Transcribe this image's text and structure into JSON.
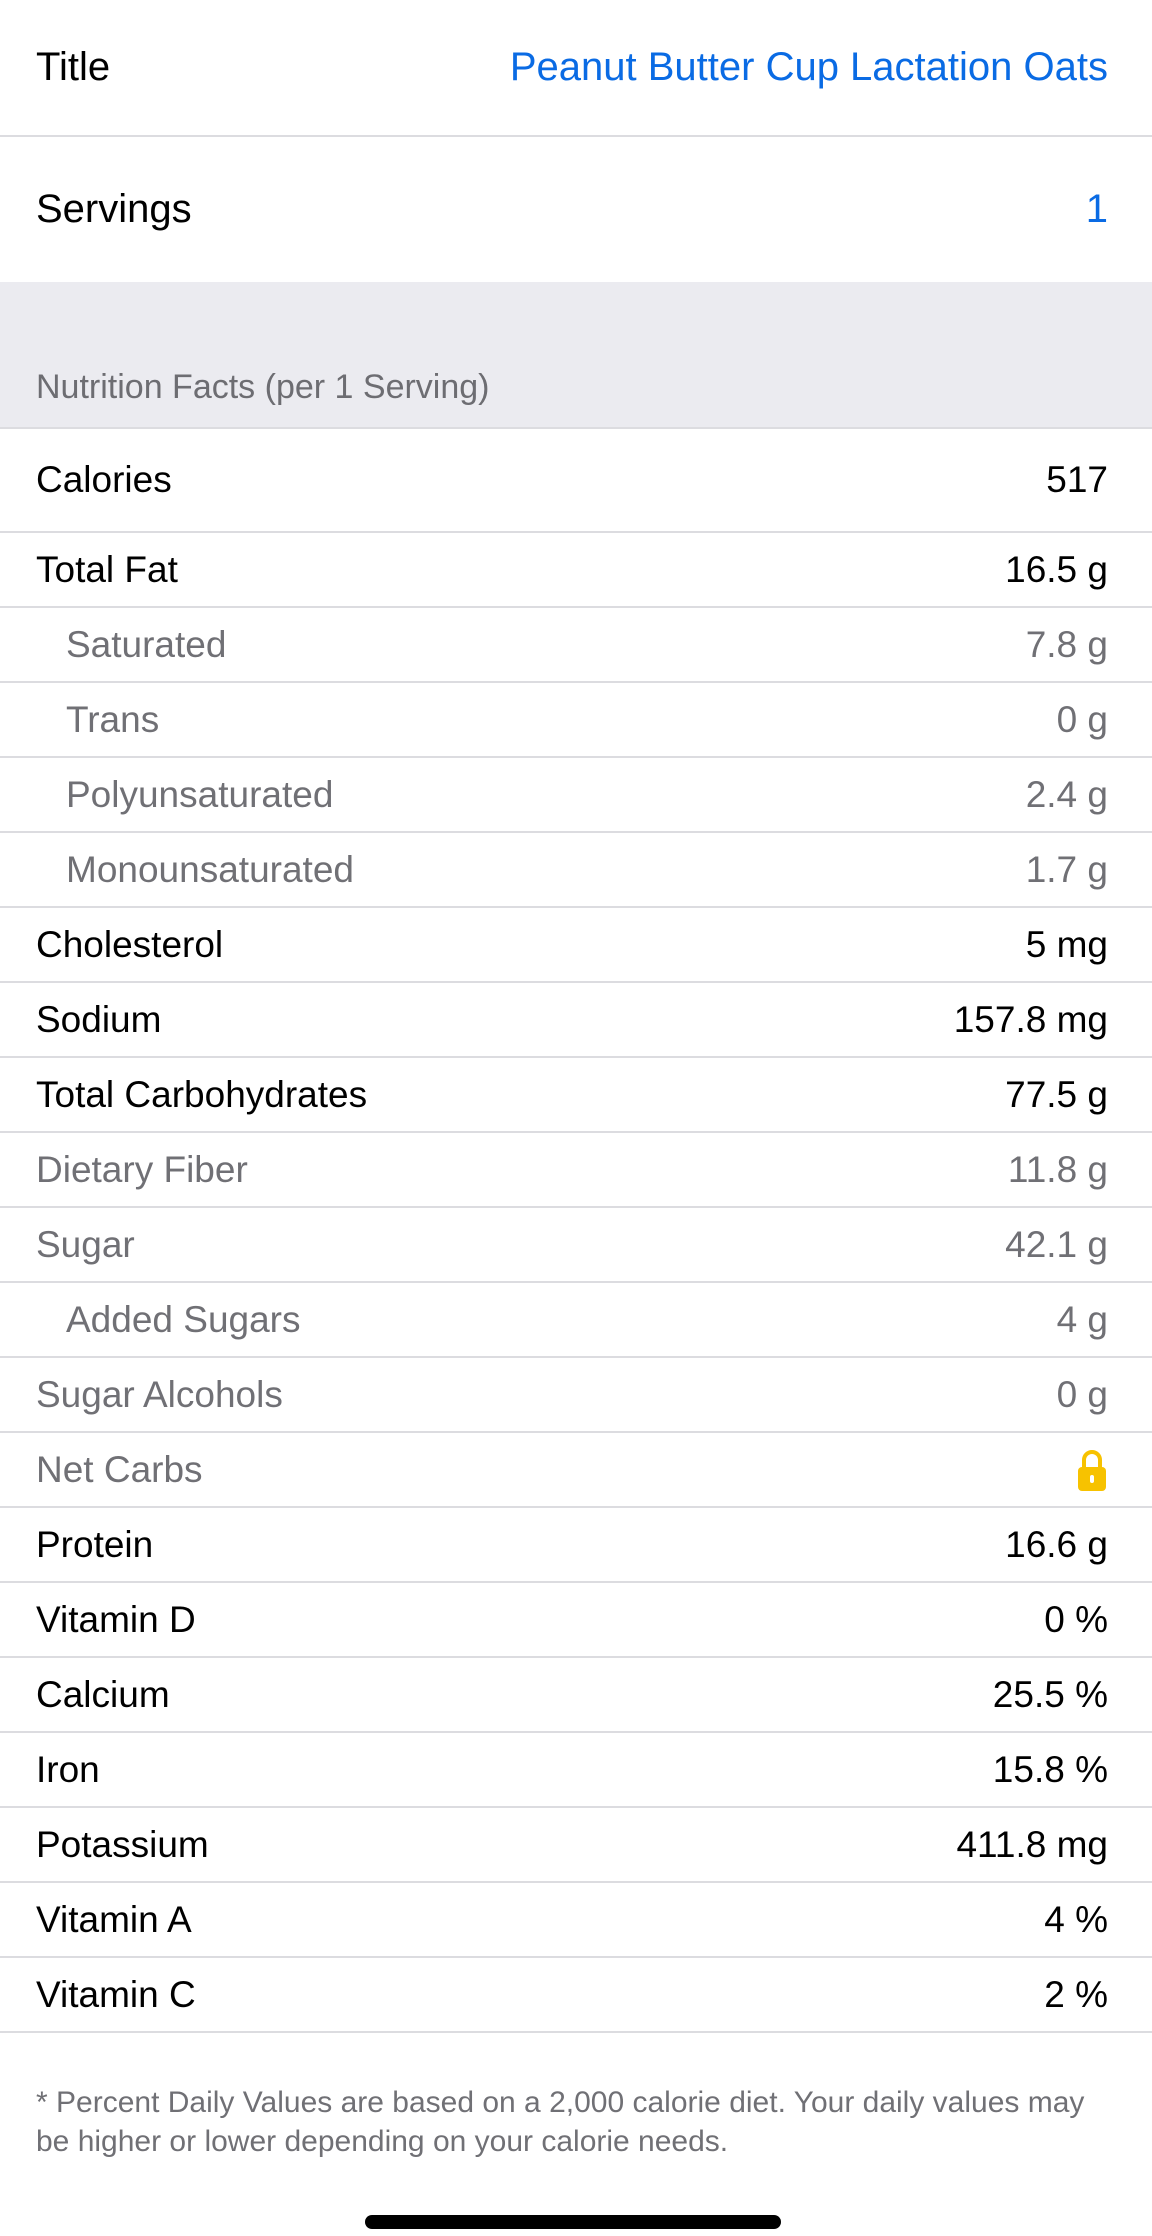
{
  "recipe": {
    "title_label": "Title",
    "title_value": "Peanut Butter Cup Lactation Oats",
    "servings_label": "Servings",
    "servings_value": "1"
  },
  "nutrition": {
    "header": "Nutrition Facts (per 1 Serving)",
    "rows": [
      {
        "label": "Calories",
        "value": "517",
        "style": "cal"
      },
      {
        "label": "Total Fat",
        "value": "16.5 g",
        "style": ""
      },
      {
        "label": "Saturated",
        "value": "7.8 g",
        "style": "sub"
      },
      {
        "label": "Trans",
        "value": "0 g",
        "style": "sub"
      },
      {
        "label": "Polyunsaturated",
        "value": "2.4 g",
        "style": "sub"
      },
      {
        "label": "Monounsaturated",
        "value": "1.7 g",
        "style": "sub"
      },
      {
        "label": "Cholesterol",
        "value": "5 mg",
        "style": ""
      },
      {
        "label": "Sodium",
        "value": "157.8 mg",
        "style": ""
      },
      {
        "label": "Total Carbohydrates",
        "value": "77.5 g",
        "style": ""
      },
      {
        "label": "Dietary Fiber",
        "value": "11.8 g",
        "style": "grey"
      },
      {
        "label": "Sugar",
        "value": "42.1 g",
        "style": "grey"
      },
      {
        "label": "Added Sugars",
        "value": "4 g",
        "style": "sub"
      },
      {
        "label": "Sugar Alcohols",
        "value": "0 g",
        "style": "grey"
      },
      {
        "label": "Net Carbs",
        "value": null,
        "icon": "lock-icon",
        "style": "grey"
      },
      {
        "label": "Protein",
        "value": "16.6 g",
        "style": ""
      },
      {
        "label": "Vitamin D",
        "value": "0 %",
        "style": ""
      },
      {
        "label": "Calcium",
        "value": "25.5 %",
        "style": ""
      },
      {
        "label": "Iron",
        "value": "15.8 %",
        "style": ""
      },
      {
        "label": "Potassium",
        "value": "411.8 mg",
        "style": ""
      },
      {
        "label": "Vitamin A",
        "value": "4 %",
        "style": ""
      },
      {
        "label": "Vitamin C",
        "value": "2 %",
        "style": ""
      }
    ],
    "footnote": "* Percent Daily Values are based on a 2,000 calorie diet.  Your daily values may be higher or lower depending on your calorie needs."
  },
  "colors": {
    "accent": "#0a6be4",
    "lock": "#f7c200",
    "section_bg": "#ebebf0"
  }
}
